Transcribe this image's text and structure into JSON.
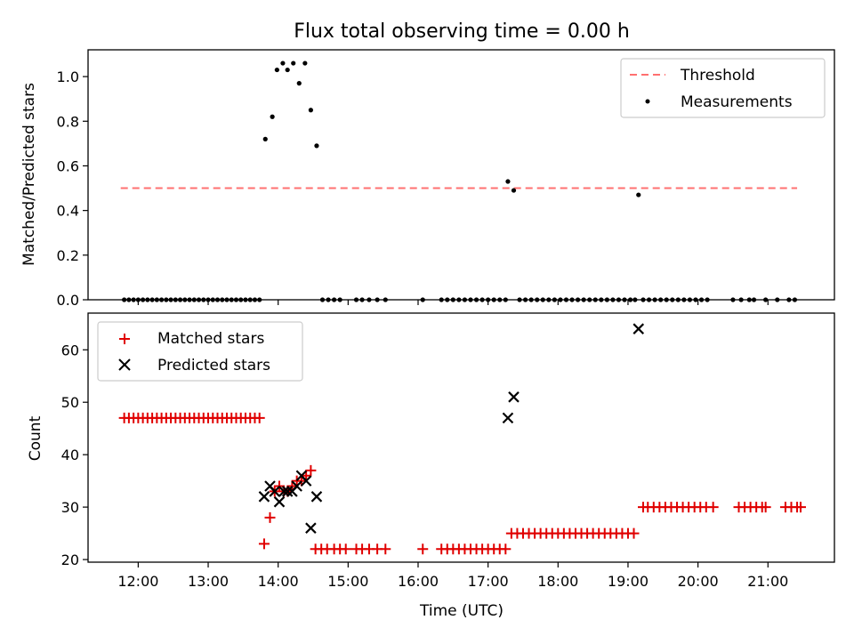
{
  "title": "Flux total observing time = 0.00 h",
  "colors": {
    "threshold": "#ff7070",
    "measurements": "#000000",
    "matched": "#e00000",
    "predicted": "#000000"
  },
  "chart_data": [
    {
      "type": "scatter",
      "ylabel": "Matched/Predicted stars",
      "ylim": [
        0,
        1.12
      ],
      "yticks": [
        "0.0",
        "0.2",
        "0.4",
        "0.6",
        "0.8",
        "1.0"
      ],
      "grid": false,
      "legend_position": "top-right",
      "legend": [
        "Threshold",
        "Measurements"
      ],
      "threshold": {
        "value": 0.5,
        "x_start": "11:45",
        "x_end": "21:25"
      },
      "series": [
        {
          "name": "Measurements",
          "points": [
            [
              "11:48",
              0
            ],
            [
              "11:52",
              0
            ],
            [
              "11:56",
              0
            ],
            [
              "12:00",
              0
            ],
            [
              "12:04",
              0
            ],
            [
              "12:08",
              0
            ],
            [
              "12:12",
              0
            ],
            [
              "12:16",
              0
            ],
            [
              "12:20",
              0
            ],
            [
              "12:24",
              0
            ],
            [
              "12:28",
              0
            ],
            [
              "12:32",
              0
            ],
            [
              "12:36",
              0
            ],
            [
              "12:40",
              0
            ],
            [
              "12:44",
              0
            ],
            [
              "12:48",
              0
            ],
            [
              "12:52",
              0
            ],
            [
              "12:56",
              0
            ],
            [
              "13:00",
              0
            ],
            [
              "13:04",
              0
            ],
            [
              "13:08",
              0
            ],
            [
              "13:12",
              0
            ],
            [
              "13:16",
              0
            ],
            [
              "13:20",
              0
            ],
            [
              "13:24",
              0
            ],
            [
              "13:28",
              0
            ],
            [
              "13:32",
              0
            ],
            [
              "13:36",
              0
            ],
            [
              "13:40",
              0
            ],
            [
              "13:44",
              0
            ],
            [
              "13:49",
              0.72
            ],
            [
              "13:55",
              0.82
            ],
            [
              "13:59",
              1.03
            ],
            [
              "14:04",
              1.06
            ],
            [
              "14:08",
              1.03
            ],
            [
              "14:13",
              1.06
            ],
            [
              "14:18",
              0.97
            ],
            [
              "14:23",
              1.06
            ],
            [
              "14:28",
              0.85
            ],
            [
              "14:33",
              0.69
            ],
            [
              "14:38",
              0
            ],
            [
              "14:43",
              0
            ],
            [
              "14:48",
              0
            ],
            [
              "14:53",
              0
            ],
            [
              "15:07",
              0
            ],
            [
              "15:12",
              0
            ],
            [
              "15:18",
              0
            ],
            [
              "15:25",
              0
            ],
            [
              "15:32",
              0
            ],
            [
              "16:04",
              0
            ],
            [
              "16:20",
              0
            ],
            [
              "16:25",
              0
            ],
            [
              "16:30",
              0
            ],
            [
              "16:35",
              0
            ],
            [
              "16:40",
              0
            ],
            [
              "16:45",
              0
            ],
            [
              "16:50",
              0
            ],
            [
              "16:55",
              0
            ],
            [
              "17:00",
              0
            ],
            [
              "17:05",
              0
            ],
            [
              "17:10",
              0
            ],
            [
              "17:15",
              0
            ],
            [
              "17:17",
              0.53
            ],
            [
              "17:22",
              0.49
            ],
            [
              "17:27",
              0
            ],
            [
              "17:32",
              0
            ],
            [
              "17:37",
              0
            ],
            [
              "17:42",
              0
            ],
            [
              "17:47",
              0
            ],
            [
              "17:52",
              0
            ],
            [
              "17:57",
              0
            ],
            [
              "18:02",
              0
            ],
            [
              "18:07",
              0
            ],
            [
              "18:12",
              0
            ],
            [
              "18:17",
              0
            ],
            [
              "18:22",
              0
            ],
            [
              "18:27",
              0
            ],
            [
              "18:32",
              0
            ],
            [
              "18:37",
              0
            ],
            [
              "18:42",
              0
            ],
            [
              "18:47",
              0
            ],
            [
              "18:52",
              0
            ],
            [
              "18:57",
              0
            ],
            [
              "19:02",
              0
            ],
            [
              "19:06",
              0
            ],
            [
              "19:09",
              0.47
            ],
            [
              "19:13",
              0
            ],
            [
              "19:18",
              0
            ],
            [
              "19:23",
              0
            ],
            [
              "19:28",
              0
            ],
            [
              "19:33",
              0
            ],
            [
              "19:38",
              0
            ],
            [
              "19:43",
              0
            ],
            [
              "19:48",
              0
            ],
            [
              "19:53",
              0
            ],
            [
              "19:58",
              0
            ],
            [
              "20:03",
              0
            ],
            [
              "20:08",
              0
            ],
            [
              "20:30",
              0
            ],
            [
              "20:37",
              0
            ],
            [
              "20:44",
              0
            ],
            [
              "20:48",
              0
            ],
            [
              "20:58",
              0
            ],
            [
              "21:08",
              0
            ],
            [
              "21:18",
              0
            ],
            [
              "21:23",
              0
            ]
          ]
        }
      ]
    },
    {
      "type": "scatter",
      "xlabel": "Time (UTC)",
      "ylabel": "Count",
      "ylim": [
        19.5,
        67
      ],
      "yticks": [
        "20",
        "30",
        "40",
        "50",
        "60"
      ],
      "xlim": [
        "11:17",
        "21:57"
      ],
      "xticks": [
        "12:00",
        "13:00",
        "14:00",
        "15:00",
        "16:00",
        "17:00",
        "18:00",
        "19:00",
        "20:00",
        "21:00"
      ],
      "grid": false,
      "legend_position": "top-left",
      "legend": [
        "Matched stars",
        "Predicted stars"
      ],
      "series": [
        {
          "name": "Matched stars",
          "points": [
            [
              "11:48",
              47
            ],
            [
              "11:52",
              47
            ],
            [
              "11:56",
              47
            ],
            [
              "12:00",
              47
            ],
            [
              "12:04",
              47
            ],
            [
              "12:08",
              47
            ],
            [
              "12:12",
              47
            ],
            [
              "12:16",
              47
            ],
            [
              "12:20",
              47
            ],
            [
              "12:24",
              47
            ],
            [
              "12:28",
              47
            ],
            [
              "12:32",
              47
            ],
            [
              "12:36",
              47
            ],
            [
              "12:40",
              47
            ],
            [
              "12:44",
              47
            ],
            [
              "12:48",
              47
            ],
            [
              "12:52",
              47
            ],
            [
              "12:56",
              47
            ],
            [
              "13:00",
              47
            ],
            [
              "13:04",
              47
            ],
            [
              "13:08",
              47
            ],
            [
              "13:12",
              47
            ],
            [
              "13:16",
              47
            ],
            [
              "13:20",
              47
            ],
            [
              "13:24",
              47
            ],
            [
              "13:28",
              47
            ],
            [
              "13:32",
              47
            ],
            [
              "13:36",
              47
            ],
            [
              "13:40",
              47
            ],
            [
              "13:44",
              47
            ],
            [
              "13:48",
              23
            ],
            [
              "13:53",
              28
            ],
            [
              "13:57",
              33
            ],
            [
              "14:01",
              34
            ],
            [
              "14:05",
              33
            ],
            [
              "14:08",
              33
            ],
            [
              "14:12",
              34
            ],
            [
              "14:16",
              35
            ],
            [
              "14:20",
              35
            ],
            [
              "14:24",
              36
            ],
            [
              "14:28",
              37
            ],
            [
              "14:32",
              22
            ],
            [
              "14:37",
              22
            ],
            [
              "14:42",
              22
            ],
            [
              "14:48",
              22
            ],
            [
              "14:53",
              22
            ],
            [
              "14:58",
              22
            ],
            [
              "15:07",
              22
            ],
            [
              "15:12",
              22
            ],
            [
              "15:18",
              22
            ],
            [
              "15:25",
              22
            ],
            [
              "15:32",
              22
            ],
            [
              "16:04",
              22
            ],
            [
              "16:20",
              22
            ],
            [
              "16:25",
              22
            ],
            [
              "16:30",
              22
            ],
            [
              "16:35",
              22
            ],
            [
              "16:40",
              22
            ],
            [
              "16:45",
              22
            ],
            [
              "16:50",
              22
            ],
            [
              "16:55",
              22
            ],
            [
              "17:00",
              22
            ],
            [
              "17:05",
              22
            ],
            [
              "17:10",
              22
            ],
            [
              "17:15",
              22
            ],
            [
              "17:20",
              25
            ],
            [
              "17:25",
              25
            ],
            [
              "17:30",
              25
            ],
            [
              "17:35",
              25
            ],
            [
              "17:40",
              25
            ],
            [
              "17:45",
              25
            ],
            [
              "17:50",
              25
            ],
            [
              "17:55",
              25
            ],
            [
              "18:00",
              25
            ],
            [
              "18:05",
              25
            ],
            [
              "18:10",
              25
            ],
            [
              "18:15",
              25
            ],
            [
              "18:20",
              25
            ],
            [
              "18:25",
              25
            ],
            [
              "18:30",
              25
            ],
            [
              "18:35",
              25
            ],
            [
              "18:40",
              25
            ],
            [
              "18:45",
              25
            ],
            [
              "18:50",
              25
            ],
            [
              "18:55",
              25
            ],
            [
              "19:00",
              25
            ],
            [
              "19:05",
              25
            ],
            [
              "19:13",
              30
            ],
            [
              "19:17",
              30
            ],
            [
              "19:22",
              30
            ],
            [
              "19:27",
              30
            ],
            [
              "19:32",
              30
            ],
            [
              "19:37",
              30
            ],
            [
              "19:42",
              30
            ],
            [
              "19:47",
              30
            ],
            [
              "19:52",
              30
            ],
            [
              "19:57",
              30
            ],
            [
              "20:02",
              30
            ],
            [
              "20:07",
              30
            ],
            [
              "20:13",
              30
            ],
            [
              "20:35",
              30
            ],
            [
              "20:40",
              30
            ],
            [
              "20:45",
              30
            ],
            [
              "20:50",
              30
            ],
            [
              "20:55",
              30
            ],
            [
              "20:58",
              30
            ],
            [
              "21:15",
              30
            ],
            [
              "21:20",
              30
            ],
            [
              "21:25",
              30
            ],
            [
              "21:28",
              30
            ]
          ]
        },
        {
          "name": "Predicted stars",
          "points": [
            [
              "13:48",
              32
            ],
            [
              "13:53",
              34
            ],
            [
              "13:57",
              33
            ],
            [
              "14:01",
              31
            ],
            [
              "14:05",
              33
            ],
            [
              "14:08",
              33
            ],
            [
              "14:12",
              33
            ],
            [
              "14:16",
              34
            ],
            [
              "14:20",
              36
            ],
            [
              "14:24",
              35
            ],
            [
              "14:28",
              26
            ],
            [
              "14:33",
              32
            ],
            [
              "17:17",
              47
            ],
            [
              "17:22",
              51
            ],
            [
              "19:09",
              64
            ]
          ]
        }
      ]
    }
  ]
}
